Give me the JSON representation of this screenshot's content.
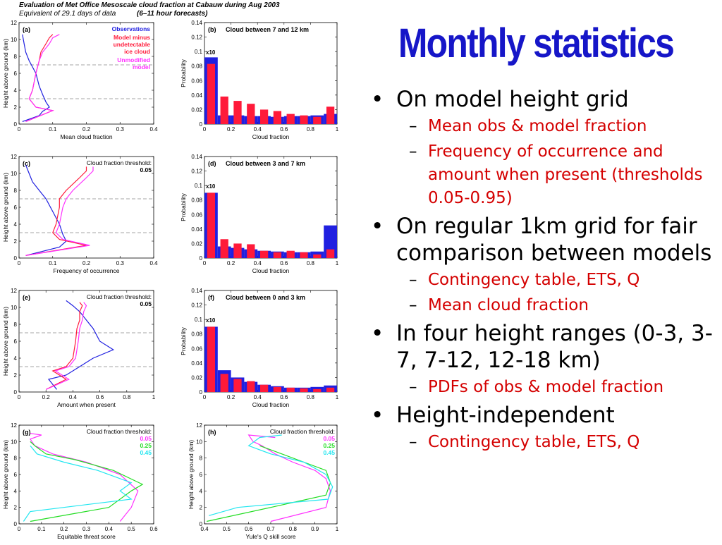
{
  "header": {
    "line1": "Evaluation of Met Office Mesoscale cloud fraction at Cabauw during Aug 2003",
    "line2": "Equivalent of 29.1 days of data",
    "line3": "(6–11 hour forecasts)"
  },
  "slide": {
    "title": "Monthly statistics",
    "bullets": [
      {
        "text": "On model height grid",
        "subs": [
          "Mean obs & model fraction",
          "Frequency of occurrence and amount when present (thresholds 0.05-0.95)"
        ]
      },
      {
        "text": "On regular 1km grid for fair comparison between models",
        "subs": [
          "Contingency table, ETS, Q",
          "Mean cloud fraction"
        ]
      },
      {
        "text": "In four height ranges (0-3, 3-7, 7-12, 12-18 km)",
        "subs": [
          "PDFs of obs & model fraction"
        ]
      },
      {
        "text": "Height-independent",
        "subs": [
          "Contingency table, ETS, Q"
        ]
      }
    ]
  },
  "colors": {
    "obs": "#2020e0",
    "model": "#ff1a3a",
    "unmod": "#ff30ff",
    "green": "#22dd22",
    "cyan": "#22e6f0"
  },
  "chart_data": [
    {
      "panel": "(a)",
      "type": "line",
      "xlabel": "Mean cloud fraction",
      "ylabel": "Height above ground (km)",
      "xlim": [
        0,
        0.4
      ],
      "ylim": [
        0,
        12
      ],
      "xticks": [
        "0",
        "0.1",
        "0.2",
        "0.3",
        "0.4"
      ],
      "yticks": [
        "0",
        "2",
        "4",
        "6",
        "8",
        "10",
        "12"
      ],
      "hlines": [
        3,
        7
      ],
      "legend": [
        "Observations",
        "Model minus\nundetectable\nice cloud",
        "Unmodified\nmodel"
      ],
      "series": [
        {
          "name": "Observations",
          "color": "obs",
          "x": [
            0.01,
            0.06,
            0.07,
            0.09,
            0.08,
            0.07,
            0.06,
            0.05,
            0.03,
            0.02,
            0.015,
            0.01
          ],
          "y": [
            0.3,
            1.0,
            1.5,
            2.0,
            2.6,
            3.5,
            4.5,
            6.0,
            7.5,
            8.5,
            9.5,
            10.6
          ]
        },
        {
          "name": "Model minus undetectable ice cloud",
          "color": "model",
          "x": [
            0.02,
            0.1,
            0.05,
            0.03,
            0.04,
            0.05,
            0.06,
            0.065,
            0.08,
            0.09,
            0.1
          ],
          "y": [
            0.3,
            1.6,
            2.0,
            3.0,
            4.0,
            6.0,
            7.5,
            8.5,
            9.5,
            10.2,
            10.6
          ]
        },
        {
          "name": "Unmodified model",
          "color": "unmod",
          "x": [
            0.02,
            0.1,
            0.05,
            0.03,
            0.04,
            0.05,
            0.06,
            0.07,
            0.09,
            0.1,
            0.12
          ],
          "y": [
            0.3,
            1.6,
            2.0,
            3.0,
            4.0,
            6.0,
            7.5,
            8.5,
            9.5,
            10.2,
            10.6
          ]
        }
      ]
    },
    {
      "panel": "(b)",
      "type": "bar",
      "title": "Cloud between 7 and 12 km",
      "xlabel": "Cloud fraction",
      "ylabel": "Probability",
      "xlim": [
        0,
        1
      ],
      "ylim": [
        0,
        0.14
      ],
      "xticks": [
        "0",
        "0.2",
        "0.4",
        "0.6",
        "0.8",
        "1"
      ],
      "yticks": [
        "0",
        "0.02",
        "0.04",
        "0.06",
        "0.08",
        "0.1",
        "0.12",
        "0.14"
      ],
      "note": "x10",
      "categories": [
        0.05,
        0.15,
        0.25,
        0.35,
        0.45,
        0.55,
        0.65,
        0.75,
        0.85,
        0.95
      ],
      "series": [
        {
          "name": "obs",
          "color": "obs",
          "values": [
            0.092,
            0.012,
            0.012,
            0.011,
            0.011,
            0.01,
            0.011,
            0.011,
            0.012,
            0.014
          ]
        },
        {
          "name": "model",
          "color": "model",
          "values": [
            0.083,
            0.038,
            0.032,
            0.028,
            0.02,
            0.018,
            0.014,
            0.012,
            0.01,
            0.024
          ]
        }
      ]
    },
    {
      "panel": "(c)",
      "type": "line",
      "xlabel": "Frequency of occurrence",
      "ylabel": "Height above ground (km)",
      "xlim": [
        0,
        0.4
      ],
      "ylim": [
        0,
        12
      ],
      "xticks": [
        "0",
        "0.1",
        "0.2",
        "0.3",
        "0.4"
      ],
      "yticks": [
        "0",
        "2",
        "4",
        "6",
        "8",
        "10",
        "12"
      ],
      "hlines": [
        3,
        7
      ],
      "legend": [
        "Cloud fraction threshold:",
        "0.05"
      ],
      "series": [
        {
          "name": "obs",
          "color": "obs",
          "x": [
            0.02,
            0.12,
            0.14,
            0.13,
            0.12,
            0.1,
            0.08,
            0.06,
            0.04,
            0.03,
            0.02
          ],
          "y": [
            0.3,
            1.3,
            2.0,
            2.8,
            4.0,
            5.5,
            7.0,
            8.0,
            9.0,
            10.0,
            11.0
          ]
        },
        {
          "name": "model",
          "color": "model",
          "x": [
            0.02,
            0.2,
            0.12,
            0.1,
            0.11,
            0.12,
            0.12,
            0.14,
            0.18,
            0.2,
            0.2
          ],
          "y": [
            0.3,
            1.5,
            2.2,
            3.0,
            4.0,
            6.0,
            7.0,
            8.0,
            9.5,
            10.3,
            10.8
          ]
        },
        {
          "name": "unmodified",
          "color": "unmod",
          "x": [
            0.02,
            0.21,
            0.13,
            0.11,
            0.12,
            0.13,
            0.14,
            0.16,
            0.2,
            0.22,
            0.22
          ],
          "y": [
            0.3,
            1.5,
            2.2,
            3.0,
            4.0,
            6.0,
            7.0,
            8.0,
            9.5,
            10.3,
            10.8
          ]
        }
      ]
    },
    {
      "panel": "(d)",
      "type": "bar",
      "title": "Cloud between 3 and 7 km",
      "xlabel": "Cloud fraction",
      "ylabel": "Probability",
      "xlim": [
        0,
        1
      ],
      "ylim": [
        0,
        0.14
      ],
      "xticks": [
        "0",
        "0.2",
        "0.4",
        "0.6",
        "0.8",
        "1"
      ],
      "yticks": [
        "0",
        "0.02",
        "0.04",
        "0.06",
        "0.08",
        "0.1",
        "0.12",
        "0.14"
      ],
      "note": "x10",
      "categories": [
        0.05,
        0.15,
        0.25,
        0.35,
        0.45,
        0.55,
        0.65,
        0.75,
        0.85,
        0.95
      ],
      "series": [
        {
          "name": "obs",
          "color": "obs",
          "values": [
            0.09,
            0.016,
            0.014,
            0.012,
            0.01,
            0.009,
            0.008,
            0.008,
            0.009,
            0.045
          ]
        },
        {
          "name": "model",
          "color": "model",
          "values": [
            0.09,
            0.026,
            0.02,
            0.019,
            0.01,
            0.008,
            0.01,
            0.008,
            0.005,
            0.012
          ]
        }
      ]
    },
    {
      "panel": "(e)",
      "type": "line",
      "xlabel": "Amount when present",
      "ylabel": "Height above ground (km)",
      "xlim": [
        0,
        1
      ],
      "ylim": [
        0,
        12
      ],
      "xticks": [
        "0",
        "0.2",
        "0.4",
        "0.6",
        "0.8",
        "1"
      ],
      "yticks": [
        "0",
        "2",
        "4",
        "6",
        "8",
        "10",
        "12"
      ],
      "hlines": [
        3,
        7
      ],
      "legend": [
        "Cloud fraction threshold:",
        "0.05"
      ],
      "series": [
        {
          "name": "obs",
          "color": "obs",
          "x": [
            0.28,
            0.22,
            0.35,
            0.45,
            0.55,
            0.7,
            0.6,
            0.55,
            0.5,
            0.45,
            0.4,
            0.35
          ],
          "y": [
            0.3,
            1.5,
            2.0,
            3.0,
            4.0,
            5.0,
            6.0,
            7.5,
            8.5,
            9.5,
            10.2,
            10.8
          ]
        },
        {
          "name": "model",
          "color": "model",
          "x": [
            0.2,
            0.35,
            0.25,
            0.35,
            0.4,
            0.42,
            0.43,
            0.45,
            0.45,
            0.47,
            0.45
          ],
          "y": [
            0.3,
            1.5,
            2.5,
            3.0,
            4.0,
            6.0,
            7.5,
            8.5,
            9.5,
            10.2,
            10.6
          ]
        },
        {
          "name": "unmodified",
          "color": "unmod",
          "x": [
            0.2,
            0.37,
            0.27,
            0.37,
            0.42,
            0.44,
            0.45,
            0.47,
            0.48,
            0.5,
            0.48
          ],
          "y": [
            0.3,
            1.5,
            2.5,
            3.0,
            4.0,
            6.0,
            7.5,
            8.5,
            9.5,
            10.2,
            10.6
          ]
        }
      ]
    },
    {
      "panel": "(f)",
      "type": "bar",
      "title": "Cloud between 0 and 3 km",
      "xlabel": "Cloud fraction",
      "ylabel": "Probability",
      "xlim": [
        0,
        1
      ],
      "ylim": [
        0,
        0.14
      ],
      "xticks": [
        "0",
        "0.2",
        "0.4",
        "0.6",
        "0.8",
        "1"
      ],
      "yticks": [
        "0",
        "0.02",
        "0.04",
        "0.06",
        "0.08",
        "0.1",
        "0.12",
        "0.14"
      ],
      "note": "x10",
      "categories": [
        0.05,
        0.15,
        0.25,
        0.35,
        0.45,
        0.55,
        0.65,
        0.75,
        0.85,
        0.95
      ],
      "series": [
        {
          "name": "obs",
          "color": "obs",
          "values": [
            0.09,
            0.03,
            0.02,
            0.014,
            0.01,
            0.008,
            0.006,
            0.006,
            0.007,
            0.009
          ]
        },
        {
          "name": "model",
          "color": "model",
          "values": [
            0.09,
            0.025,
            0.018,
            0.015,
            0.01,
            0.007,
            0.006,
            0.005,
            0.004,
            0.006
          ]
        }
      ]
    },
    {
      "panel": "(g)",
      "type": "line",
      "xlabel": "Equitable threat score",
      "ylabel": "Height above ground (km)",
      "xlim": [
        0,
        0.6
      ],
      "ylim": [
        0,
        12
      ],
      "xticks": [
        "0",
        "0.1",
        "0.2",
        "0.3",
        "0.4",
        "0.5",
        "0.6"
      ],
      "yticks": [
        "0",
        "2",
        "4",
        "6",
        "8",
        "10",
        "12"
      ],
      "legend": [
        "Cloud fraction threshold:",
        "0.05",
        "0.25",
        "0.45"
      ],
      "series": [
        {
          "name": "0.05",
          "color": "unmod",
          "x": [
            0.45,
            0.5,
            0.53,
            0.45,
            0.3,
            0.15,
            0.07,
            0.05,
            0.1,
            0.05
          ],
          "y": [
            0.3,
            2.0,
            4.0,
            6.0,
            7.5,
            8.5,
            9.5,
            10.3,
            10.8,
            11.0
          ]
        },
        {
          "name": "0.25",
          "color": "green",
          "x": [
            0.05,
            0.4,
            0.5,
            0.55,
            0.42,
            0.25,
            0.12,
            0.07,
            0.05
          ],
          "y": [
            0.3,
            2.0,
            4.0,
            4.8,
            6.5,
            7.8,
            8.5,
            9.5,
            10.0
          ]
        },
        {
          "name": "0.45",
          "color": "cyan",
          "x": [
            0.02,
            0.05,
            0.35,
            0.5,
            0.45,
            0.5,
            0.35,
            0.2,
            0.08,
            0.05
          ],
          "y": [
            0.3,
            1.5,
            2.5,
            3.0,
            4.0,
            5.0,
            6.5,
            7.5,
            8.5,
            9.5
          ]
        }
      ]
    },
    {
      "panel": "(h)",
      "type": "line",
      "xlabel": "Yule's Q skill score",
      "ylabel": "Height above ground (km)",
      "xlim": [
        0.4,
        1
      ],
      "ylim": [
        0,
        12
      ],
      "xticks": [
        "0.4",
        "0.5",
        "0.6",
        "0.7",
        "0.8",
        "0.9",
        "1"
      ],
      "yticks": [
        "0",
        "2",
        "4",
        "6",
        "8",
        "10",
        "12"
      ],
      "legend": [
        "Cloud fraction threshold:",
        "0.05",
        "0.25",
        "0.45"
      ],
      "series": [
        {
          "name": "0.05",
          "color": "unmod",
          "x": [
            0.7,
            0.95,
            0.97,
            0.95,
            0.9,
            0.8,
            0.72,
            0.66,
            0.62,
            0.6,
            0.72
          ],
          "y": [
            0.3,
            2.0,
            4.0,
            5.5,
            6.5,
            7.5,
            8.5,
            9.5,
            10.0,
            10.8,
            10.5
          ]
        },
        {
          "name": "0.25",
          "color": "green",
          "x": [
            0.41,
            0.7,
            0.95,
            0.97,
            0.95,
            0.85,
            0.75,
            0.65
          ],
          "y": [
            0.3,
            2.0,
            3.5,
            5.0,
            6.5,
            7.5,
            8.5,
            9.5
          ]
        },
        {
          "name": "0.45",
          "color": "cyan",
          "x": [
            0.42,
            0.55,
            0.96,
            0.98,
            0.95,
            0.85,
            0.7,
            0.6,
            0.65,
            0.75
          ],
          "y": [
            1.0,
            2.0,
            3.0,
            4.5,
            6.0,
            7.5,
            8.5,
            9.5,
            10.5,
            10.8
          ]
        }
      ]
    }
  ]
}
